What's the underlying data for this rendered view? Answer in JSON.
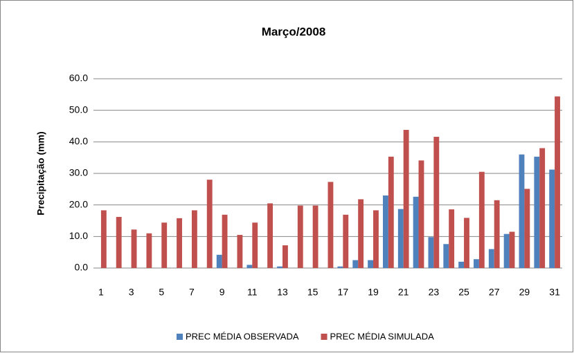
{
  "chart_data": {
    "type": "bar",
    "title": "Março/2008",
    "y_label": "Precipitação (mm)",
    "categories": [
      "1",
      null,
      "3",
      null,
      "5",
      null,
      "7",
      null,
      "9",
      null,
      "11",
      null,
      "13",
      null,
      "15",
      null,
      "17",
      null,
      "19",
      null,
      "21",
      null,
      "23",
      null,
      "25",
      null,
      "27",
      null,
      "29",
      null,
      "31"
    ],
    "series": [
      {
        "name": "PREC MÉDIA OBSERVADA",
        "color": "#4f81bd",
        "values": [
          0,
          0,
          0,
          0,
          0,
          0,
          0,
          0,
          4.2,
          0,
          1.0,
          0,
          0.5,
          0,
          0,
          0,
          0.5,
          2.5,
          2.5,
          23.0,
          18.7,
          22.6,
          9.8,
          7.6,
          2.0,
          2.8,
          6.0,
          10.8,
          36.0,
          35.3,
          31.2
        ]
      },
      {
        "name": "PREC MÉDIA SIMULADA",
        "color": "#c0504d",
        "values": [
          18.3,
          16.2,
          12.2,
          11.0,
          14.4,
          15.8,
          18.3,
          28.0,
          16.9,
          10.5,
          14.4,
          20.5,
          7.2,
          19.8,
          19.8,
          27.3,
          16.9,
          21.8,
          18.3,
          35.3,
          43.8,
          34.1,
          41.6,
          18.6,
          15.9,
          30.5,
          21.5,
          11.5,
          25.1,
          38.0,
          54.4
        ]
      }
    ],
    "ylim": [
      0,
      60
    ],
    "yticks": [
      {
        "value": 0,
        "label": "0.0"
      },
      {
        "value": 10,
        "label": "10.0"
      },
      {
        "value": 20,
        "label": "20.0"
      },
      {
        "value": 30,
        "label": "30.0"
      },
      {
        "value": 40,
        "label": "40.0"
      },
      {
        "value": 50,
        "label": "50.0"
      },
      {
        "value": 60,
        "label": "60.0"
      }
    ],
    "grid": true,
    "legend": "bottom"
  }
}
